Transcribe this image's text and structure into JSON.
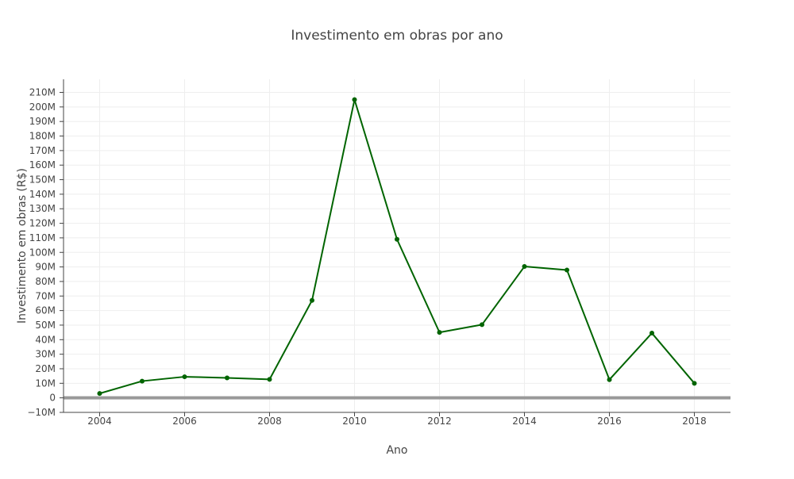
{
  "chart_data": {
    "type": "line",
    "title": "Investimento em obras por ano",
    "xlabel": "Ano",
    "ylabel": "Investimento em obras (R$)",
    "x": [
      2004,
      2005,
      2006,
      2007,
      2008,
      2009,
      2010,
      2011,
      2012,
      2013,
      2014,
      2015,
      2016,
      2017,
      2018
    ],
    "series": [
      {
        "values": [
          3000000,
          11500000,
          14500000,
          13700000,
          12700000,
          67000000,
          205000000,
          109000000,
          45000000,
          50300000,
          90300000,
          87900000,
          12500000,
          44500000,
          10000000
        ]
      }
    ],
    "xlim": [
      2003.15,
      2018.85
    ],
    "ylim": [
      -10000000,
      219000000
    ],
    "x_ticks": [
      2004,
      2006,
      2008,
      2010,
      2012,
      2014,
      2016,
      2018
    ],
    "x_tick_labels": [
      "2004",
      "2006",
      "2008",
      "2010",
      "2012",
      "2014",
      "2016",
      "2018"
    ],
    "y_ticks": [
      -10000000,
      0,
      10000000,
      20000000,
      30000000,
      40000000,
      50000000,
      60000000,
      70000000,
      80000000,
      90000000,
      100000000,
      110000000,
      120000000,
      130000000,
      140000000,
      150000000,
      160000000,
      170000000,
      180000000,
      190000000,
      200000000,
      210000000
    ],
    "y_tick_labels": [
      "−10M",
      "0",
      "10M",
      "20M",
      "30M",
      "40M",
      "50M",
      "60M",
      "70M",
      "80M",
      "90M",
      "100M",
      "110M",
      "120M",
      "130M",
      "140M",
      "150M",
      "160M",
      "170M",
      "180M",
      "190M",
      "200M",
      "210M"
    ],
    "grid": true,
    "line_color": "#006400",
    "zero_line_color": "#999999"
  }
}
